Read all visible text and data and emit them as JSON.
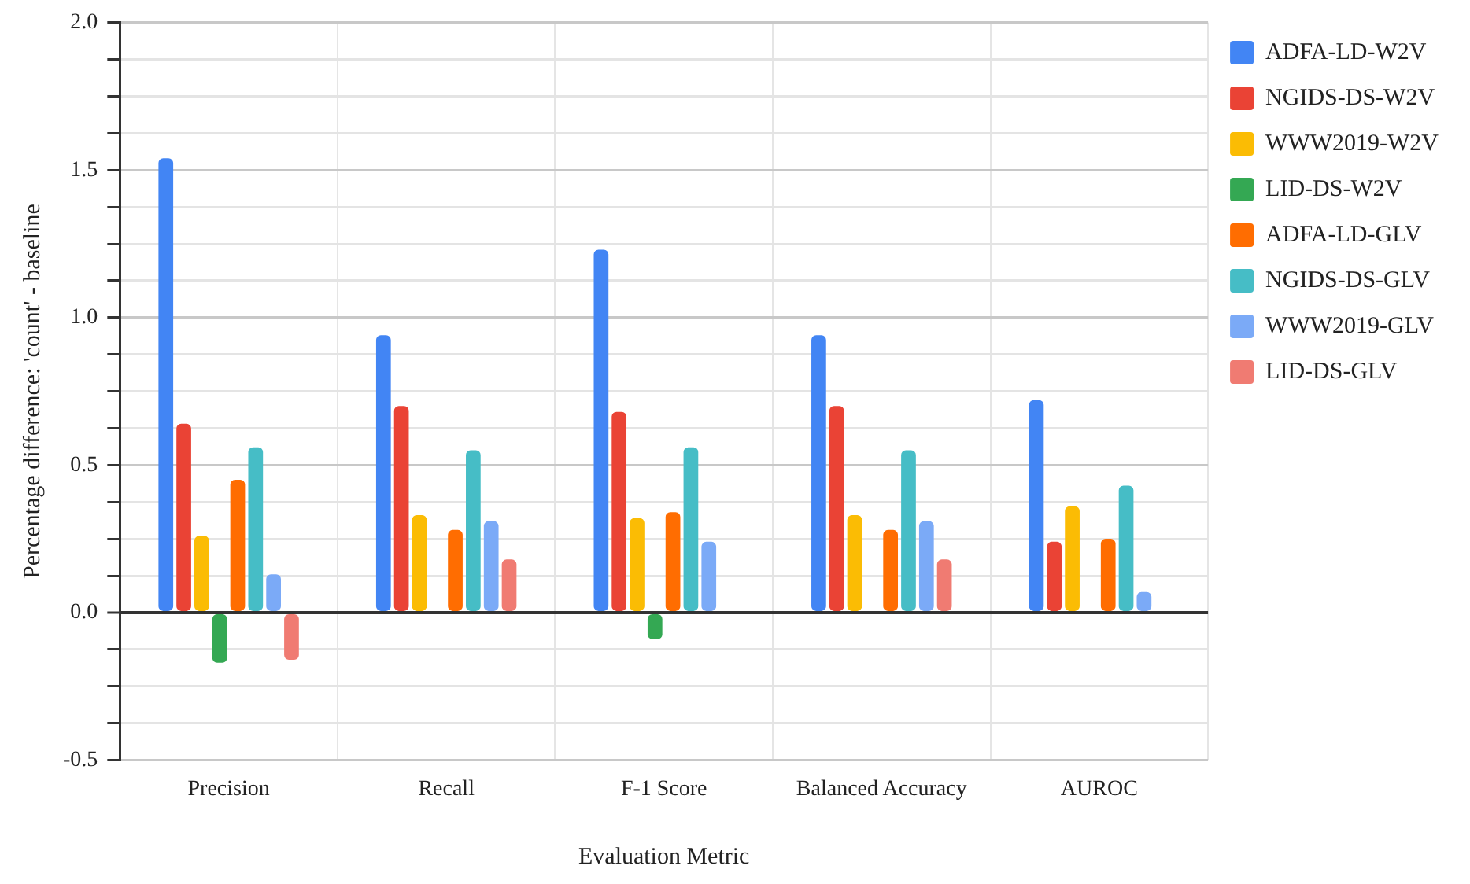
{
  "chart_data": {
    "type": "bar",
    "xlabel": "Evaluation Metric",
    "ylabel": "Percentage difference: 'count' - baseline",
    "categories": [
      "Precision",
      "Recall",
      "F-1 Score",
      "Balanced Accuracy",
      "AUROC"
    ],
    "series": [
      {
        "name": "ADFA-LD-W2V",
        "color": "#4285f4",
        "values": [
          1.54,
          0.94,
          1.23,
          0.94,
          0.72
        ]
      },
      {
        "name": "NGIDS-DS-W2V",
        "color": "#ea4335",
        "values": [
          0.64,
          0.7,
          0.68,
          0.7,
          0.24
        ]
      },
      {
        "name": "WWW2019-W2V",
        "color": "#fbbc04",
        "values": [
          0.26,
          0.33,
          0.32,
          0.33,
          0.36
        ]
      },
      {
        "name": "LID-DS-W2V",
        "color": "#34a853",
        "values": [
          -0.17,
          0,
          -0.09,
          0,
          0
        ]
      },
      {
        "name": "ADFA-LD-GLV",
        "color": "#ff6d01",
        "values": [
          0.45,
          0.28,
          0.34,
          0.28,
          0.25
        ]
      },
      {
        "name": "NGIDS-DS-GLV",
        "color": "#46bdc6",
        "values": [
          0.56,
          0.55,
          0.56,
          0.55,
          0.43
        ]
      },
      {
        "name": "WWW2019-GLV",
        "color": "#7baaf7",
        "values": [
          0.13,
          0.31,
          0.24,
          0.31,
          0.07
        ]
      },
      {
        "name": "LID-DS-GLV",
        "color": "#f07b72",
        "values": [
          -0.16,
          0.18,
          0,
          0.18,
          0
        ]
      }
    ],
    "ylim": [
      -0.5,
      2.0
    ],
    "yticks": [
      {
        "value": -0.5,
        "label": "-0.5"
      },
      {
        "value": -0.375,
        "label": null
      },
      {
        "value": -0.25,
        "label": null
      },
      {
        "value": -0.125,
        "label": null
      },
      {
        "value": 0,
        "label": "0.0"
      },
      {
        "value": 0.125,
        "label": null
      },
      {
        "value": 0.25,
        "label": null
      },
      {
        "value": 0.375,
        "label": null
      },
      {
        "value": 0.5,
        "label": "0.5"
      },
      {
        "value": 0.625,
        "label": null
      },
      {
        "value": 0.75,
        "label": null
      },
      {
        "value": 0.875,
        "label": null
      },
      {
        "value": 1.0,
        "label": "1.0"
      },
      {
        "value": 1.125,
        "label": null
      },
      {
        "value": 1.25,
        "label": null
      },
      {
        "value": 1.375,
        "label": null
      },
      {
        "value": 1.5,
        "label": "1.5"
      },
      {
        "value": 1.625,
        "label": null
      },
      {
        "value": 1.75,
        "label": null
      },
      {
        "value": 1.875,
        "label": null
      },
      {
        "value": 2.0,
        "label": "2.0"
      }
    ],
    "grid": true,
    "legend": "top right"
  }
}
